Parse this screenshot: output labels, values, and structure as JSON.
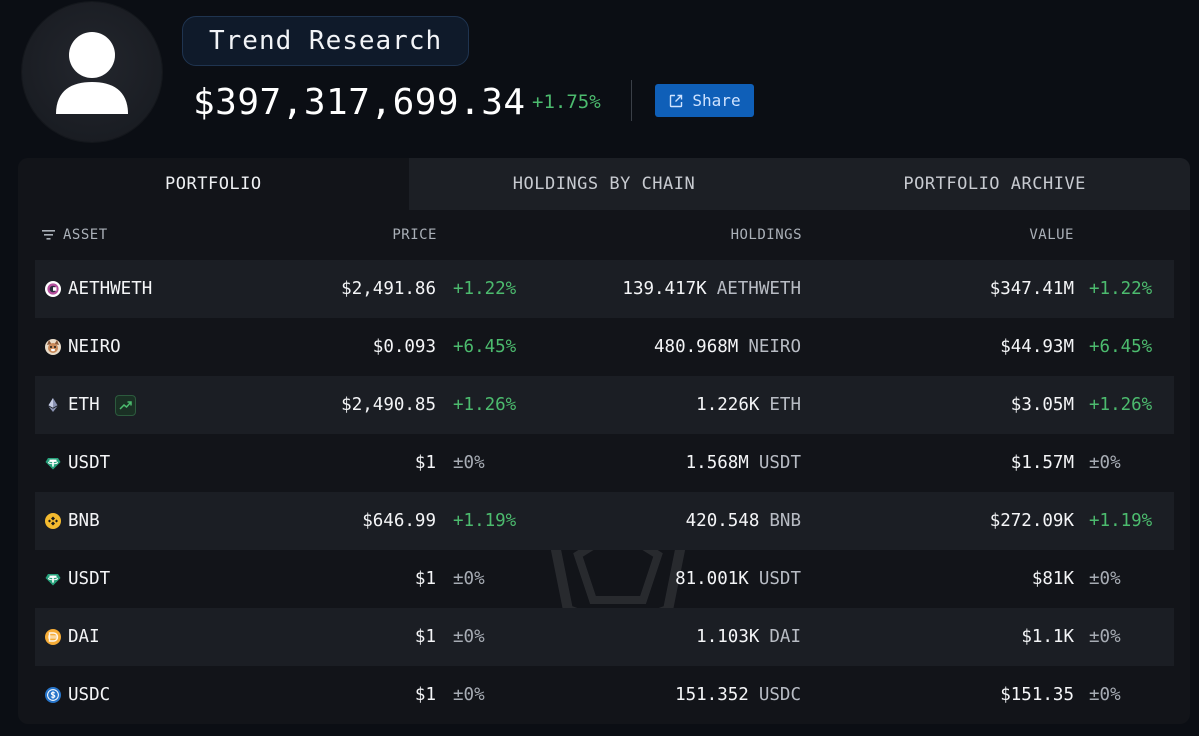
{
  "profile": {
    "name": "Trend Research",
    "total_value": "$397,317,699.34",
    "total_change": "+1.75%",
    "share_label": "Share"
  },
  "tabs": [
    {
      "label": "PORTFOLIO",
      "active": true
    },
    {
      "label": "HOLDINGS BY CHAIN",
      "active": false
    },
    {
      "label": "PORTFOLIO ARCHIVE",
      "active": false
    }
  ],
  "columns": {
    "asset": "ASSET",
    "price": "PRICE",
    "holdings": "HOLDINGS",
    "value": "VALUE"
  },
  "colors": {
    "positive": "#4cbb6e",
    "neutral": "#a7acb4",
    "accent": "#0f5fb8",
    "background": "#0b0e14"
  },
  "rows": [
    {
      "asset": "AETHWETH",
      "icon": "aethweth-coin-icon",
      "price": "$2,491.86",
      "price_change": "+1.22%",
      "holdings_amount": "139.417K",
      "holdings_symbol": "AETHWETH",
      "value": "$347.41M",
      "value_change": "+1.22%"
    },
    {
      "asset": "NEIRO",
      "icon": "neiro-coin-icon",
      "price": "$0.093",
      "price_change": "+6.45%",
      "holdings_amount": "480.968M",
      "holdings_symbol": "NEIRO",
      "value": "$44.93M",
      "value_change": "+6.45%"
    },
    {
      "asset": "ETH",
      "icon": "eth-coin-icon",
      "trending": true,
      "price": "$2,490.85",
      "price_change": "+1.26%",
      "holdings_amount": "1.226K",
      "holdings_symbol": "ETH",
      "value": "$3.05M",
      "value_change": "+1.26%"
    },
    {
      "asset": "USDT",
      "icon": "usdt-coin-icon",
      "price": "$1",
      "price_change": "±0%",
      "holdings_amount": "1.568M",
      "holdings_symbol": "USDT",
      "value": "$1.57M",
      "value_change": "±0%"
    },
    {
      "asset": "BNB",
      "icon": "bnb-coin-icon",
      "price": "$646.99",
      "price_change": "+1.19%",
      "holdings_amount": "420.548",
      "holdings_symbol": "BNB",
      "value": "$272.09K",
      "value_change": "+1.19%"
    },
    {
      "asset": "USDT",
      "icon": "usdt-coin-icon",
      "price": "$1",
      "price_change": "±0%",
      "holdings_amount": "81.001K",
      "holdings_symbol": "USDT",
      "value": "$81K",
      "value_change": "±0%"
    },
    {
      "asset": "DAI",
      "icon": "dai-coin-icon",
      "price": "$1",
      "price_change": "±0%",
      "holdings_amount": "1.103K",
      "holdings_symbol": "DAI",
      "value": "$1.1K",
      "value_change": "±0%"
    },
    {
      "asset": "USDC",
      "icon": "usdc-coin-icon",
      "price": "$1",
      "price_change": "±0%",
      "holdings_amount": "151.352",
      "holdings_symbol": "USDC",
      "value": "$151.35",
      "value_change": "±0%"
    }
  ]
}
